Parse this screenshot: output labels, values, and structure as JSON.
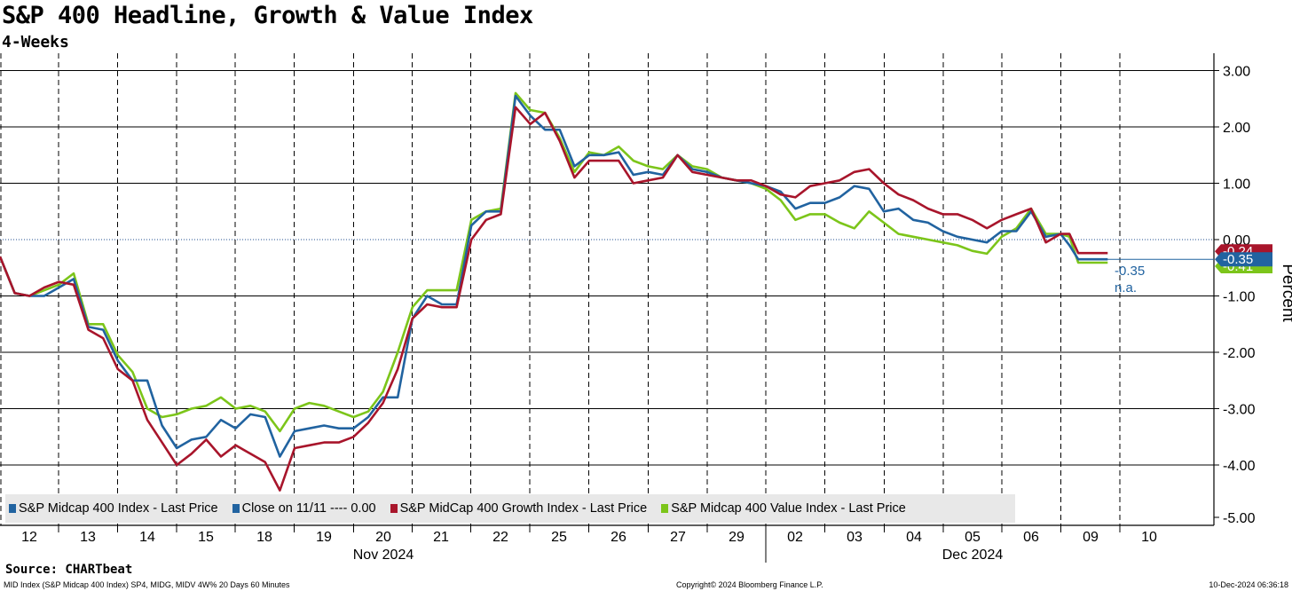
{
  "title": "S&P 400 Headline, Growth & Value Index",
  "subtitle": "4-Weeks",
  "source": "Source: CHARTbeat",
  "footer": {
    "left": "MID Index (S&P Midcap 400 Index) SP4, MIDG, MIDV 4W% 20 Days 60 Minutes",
    "center": "Copyright© 2024 Bloomberg Finance L.P.",
    "right": "10-Dec-2024 06:36:18"
  },
  "legend": {
    "item1": "S&P Midcap 400 Index - Last Price",
    "item2": "Close on 11/11 ---- 0.00",
    "item3": "S&P MidCap 400 Growth Index - Last Price",
    "item4": "S&P Midcap 400 Value Index - Last Price"
  },
  "colors": {
    "headline": "#2163a0",
    "growth": "#a8152b",
    "value": "#7cc51a",
    "zero_line": "#1f4e8f"
  },
  "chart_data": {
    "type": "line",
    "ylabel": "Percent",
    "ylim": [
      -5.0,
      3.0
    ],
    "y_ticks": [
      "3.00",
      "2.00",
      "1.00",
      "0.00",
      "-1.00",
      "-2.00",
      "-3.00",
      "-4.00",
      "-5.00"
    ],
    "x_tick_labels": [
      "12",
      "13",
      "14",
      "15",
      "18",
      "19",
      "20",
      "21",
      "22",
      "25",
      "26",
      "27",
      "29",
      "02",
      "03",
      "04",
      "05",
      "06",
      "09",
      "10"
    ],
    "month_labels": [
      "Nov 2024",
      "Dec 2024"
    ],
    "grid": true,
    "legend_position": "bottom",
    "last_value_labels": {
      "headline": "-0.35",
      "growth": "-0.24",
      "value": "-0.41",
      "annotation_value": "-0.35",
      "annotation_na": "n.a."
    },
    "reference_line": {
      "name": "Close on 11/11",
      "value": 0.0
    },
    "x": [
      0,
      0.25,
      0.5,
      0.75,
      1,
      1.25,
      1.5,
      1.75,
      2,
      2.25,
      2.5,
      2.75,
      3,
      3.25,
      3.5,
      3.75,
      4,
      4.25,
      4.5,
      4.75,
      5,
      5.25,
      5.5,
      5.75,
      6,
      6.25,
      6.5,
      6.75,
      7,
      7.25,
      7.5,
      7.75,
      8,
      8.25,
      8.5,
      8.75,
      9,
      9.25,
      9.5,
      9.75,
      10,
      10.25,
      10.5,
      10.75,
      11,
      11.25,
      11.5,
      11.75,
      12,
      12.25,
      12.5,
      12.75,
      13,
      13.25,
      13.5,
      13.75,
      14,
      14.25,
      14.5,
      14.75,
      15,
      15.25,
      15.5,
      15.75,
      16,
      16.25,
      16.5,
      16.75,
      17,
      17.25,
      17.5,
      17.75,
      18,
      18.15,
      18.3,
      18.45,
      18.6,
      18.8
    ],
    "series": [
      {
        "name": "S&P Midcap 400 Index - Last Price",
        "key": "headline",
        "values": [
          -0.3,
          -0.95,
          -1.0,
          -1.0,
          -0.85,
          -0.7,
          -1.55,
          -1.6,
          -2.15,
          -2.5,
          -2.5,
          -3.3,
          -3.7,
          -3.55,
          -3.5,
          -3.2,
          -3.35,
          -3.1,
          -3.15,
          -3.85,
          -3.4,
          -3.35,
          -3.3,
          -3.35,
          -3.35,
          -3.15,
          -2.8,
          -2.8,
          -1.4,
          -1.0,
          -1.15,
          -1.15,
          0.25,
          0.5,
          0.5,
          2.55,
          2.2,
          1.95,
          1.95,
          1.3,
          1.5,
          1.5,
          1.55,
          1.15,
          1.2,
          1.15,
          1.5,
          1.25,
          1.2,
          1.1,
          1.05,
          1.0,
          0.95,
          0.85,
          0.55,
          0.65,
          0.65,
          0.75,
          0.95,
          0.9,
          0.5,
          0.55,
          0.35,
          0.3,
          0.15,
          0.05,
          0.0,
          -0.05,
          0.15,
          0.15,
          0.5,
          0.05,
          0.1,
          -0.1,
          -0.35,
          -0.35,
          -0.35,
          -0.35
        ]
      },
      {
        "name": "S&P MidCap 400 Growth Index - Last Price",
        "key": "growth",
        "values": [
          -0.3,
          -0.95,
          -1.0,
          -0.85,
          -0.75,
          -0.8,
          -1.6,
          -1.75,
          -2.3,
          -2.5,
          -3.2,
          -3.6,
          -4.0,
          -3.8,
          -3.55,
          -3.85,
          -3.65,
          -3.8,
          -3.95,
          -4.45,
          -3.7,
          -3.65,
          -3.6,
          -3.6,
          -3.5,
          -3.25,
          -2.9,
          -2.3,
          -1.4,
          -1.15,
          -1.2,
          -1.2,
          0.0,
          0.35,
          0.45,
          2.35,
          2.05,
          2.25,
          1.75,
          1.1,
          1.4,
          1.4,
          1.4,
          1.0,
          1.05,
          1.1,
          1.5,
          1.2,
          1.15,
          1.1,
          1.05,
          1.05,
          0.95,
          0.8,
          0.75,
          0.95,
          1.0,
          1.05,
          1.2,
          1.25,
          1.0,
          0.8,
          0.7,
          0.55,
          0.45,
          0.45,
          0.35,
          0.2,
          0.35,
          0.45,
          0.55,
          -0.05,
          0.1,
          0.1,
          -0.24,
          -0.24,
          -0.24,
          -0.24
        ]
      },
      {
        "name": "S&P Midcap 400 Value Index - Last Price",
        "key": "value",
        "values": [
          -0.3,
          -0.95,
          -1.0,
          -0.9,
          -0.8,
          -0.6,
          -1.5,
          -1.5,
          -2.05,
          -2.35,
          -3.0,
          -3.15,
          -3.1,
          -3.0,
          -2.95,
          -2.8,
          -3.0,
          -2.95,
          -3.05,
          -3.4,
          -3.0,
          -2.9,
          -2.95,
          -3.05,
          -3.15,
          -3.05,
          -2.7,
          -2.0,
          -1.2,
          -0.9,
          -0.9,
          -0.9,
          0.35,
          0.5,
          0.55,
          2.6,
          2.3,
          2.25,
          1.8,
          1.2,
          1.55,
          1.5,
          1.65,
          1.4,
          1.3,
          1.25,
          1.5,
          1.3,
          1.25,
          1.1,
          1.05,
          1.0,
          0.9,
          0.7,
          0.35,
          0.45,
          0.45,
          0.3,
          0.2,
          0.5,
          0.3,
          0.1,
          0.05,
          0.0,
          -0.05,
          -0.1,
          -0.2,
          -0.25,
          0.05,
          0.2,
          0.55,
          0.1,
          0.1,
          0.05,
          -0.41,
          -0.41,
          -0.41,
          -0.41
        ]
      }
    ]
  }
}
